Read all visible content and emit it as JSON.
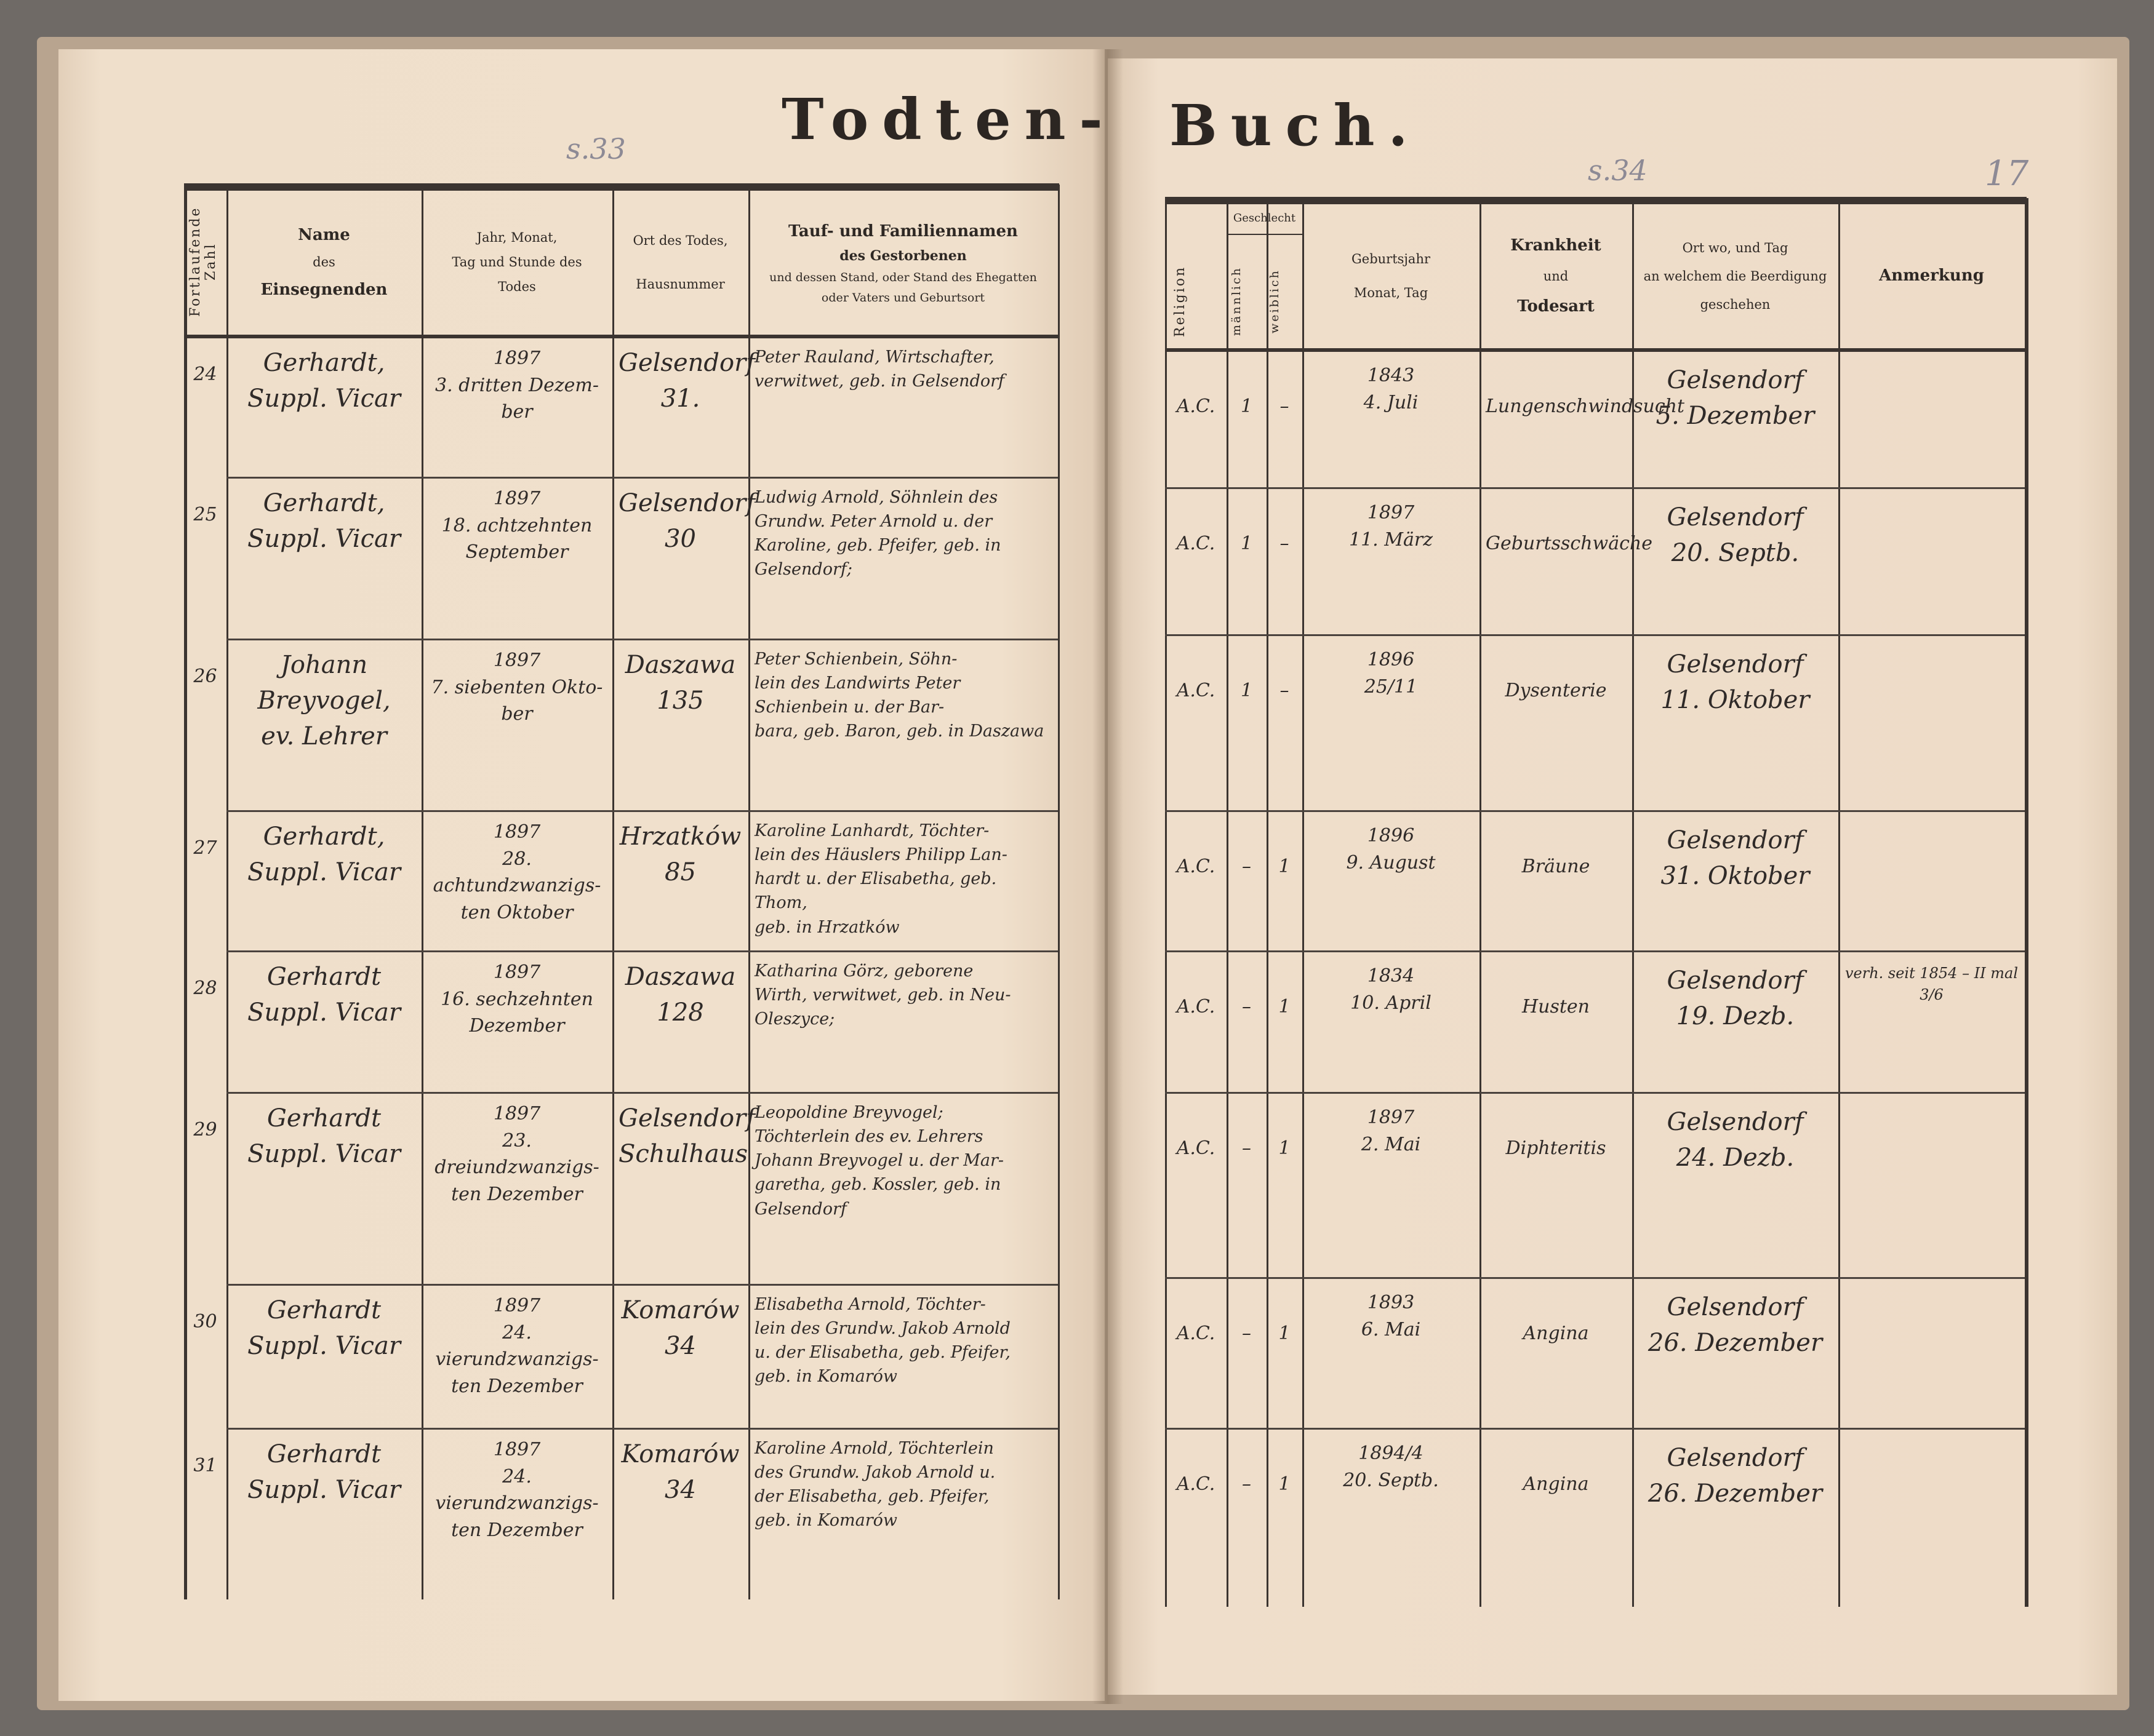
{
  "title_left": "Todten-",
  "title_right": "Buch.",
  "page_marks": {
    "left": "s.33",
    "right": "s.34",
    "folio": "17"
  },
  "left_headers": {
    "number": "Fortlaufende Zahl",
    "officiant": [
      "Name",
      "des",
      "Einsegnenden"
    ],
    "date": [
      "Jahr, Monat,",
      "Tag und Stunde des",
      "Todes"
    ],
    "place": [
      "Ort des Todes,",
      "Hausnummer"
    ],
    "deceased": [
      "Tauf- und Familiennamen",
      "des Gestorbenen",
      "und dessen Stand, oder Stand des Ehegatten",
      "oder Vaters und Geburtsort"
    ]
  },
  "right_headers": {
    "religion": "Religion",
    "sex": "Geschlecht",
    "male": "männlich",
    "female": "weiblich",
    "birth": [
      "Geburtsjahr",
      "Monat, Tag"
    ],
    "disease": [
      "Krankheit",
      "und",
      "Todesart"
    ],
    "burial": [
      "Ort wo, und Tag",
      "an welchem die Beerdigung",
      "geschehen"
    ],
    "remark": "Anmerkung"
  },
  "entries": [
    {
      "no": "24",
      "officiant": "Gerhardt,\nSuppl. Vicar",
      "date": "1897\n3. dritten Dezem-\nber",
      "place": "Gelsendorf\n31.",
      "deceased": "Peter Rauland, Wirtschafter,\nverwitwet, geb. in Gelsendorf",
      "religion": "A.C.",
      "male": "1",
      "female": "–",
      "birth": "1843\n4. Juli",
      "disease": "Lungenschwindsucht",
      "burial": "Gelsendorf\n5. Dezember",
      "remark": ""
    },
    {
      "no": "25",
      "officiant": "Gerhardt,\nSuppl. Vicar",
      "date": "1897\n18. achtzehnten\nSeptember",
      "place": "Gelsendorf\n30",
      "deceased": "Ludwig Arnold, Söhnlein des\nGrundw. Peter Arnold u. der\nKaroline, geb. Pfeifer, geb. in\nGelsendorf;",
      "religion": "A.C.",
      "male": "1",
      "female": "–",
      "birth": "1897\n11. März",
      "disease": "Geburtsschwäche",
      "burial": "Gelsendorf\n20. Septb.",
      "remark": ""
    },
    {
      "no": "26",
      "officiant": "Johann Breyvogel,\nev. Lehrer",
      "date": "1897\n7. siebenten Okto-\nber",
      "place": "Daszawa\n135",
      "deceased": "Peter Schienbein, Söhn-\nlein des Landwirts Peter\nSchienbein u. der Bar-\nbara, geb. Baron, geb. in Daszawa",
      "religion": "A.C.",
      "male": "1",
      "female": "–",
      "birth": "1896\n25/11",
      "disease": "Dysenterie",
      "burial": "Gelsendorf\n11. Oktober",
      "remark": ""
    },
    {
      "no": "27",
      "officiant": "Gerhardt,\nSuppl. Vicar",
      "date": "1897\n28. achtundzwanzigs-\nten Oktober",
      "place": "Hrzatków\n85",
      "deceased": "Karoline Lanhardt, Töchter-\nlein des Häuslers Philipp Lan-\nhardt u. der Elisabetha, geb. Thom,\ngeb. in Hrzatków",
      "religion": "A.C.",
      "male": "–",
      "female": "1",
      "birth": "1896\n9. August",
      "disease": "Bräune",
      "burial": "Gelsendorf\n31. Oktober",
      "remark": ""
    },
    {
      "no": "28",
      "officiant": "Gerhardt\nSuppl. Vicar",
      "date": "1897\n16. sechzehnten\nDezember",
      "place": "Daszawa\n128",
      "deceased": "Katharina Görz, geborene\nWirth, verwitwet, geb. in Neu-\nOleszyce;",
      "religion": "A.C.",
      "male": "–",
      "female": "1",
      "birth": "1834\n10. April",
      "disease": "Husten",
      "burial": "Gelsendorf\n19. Dezb.",
      "remark": "verh. seit 1854 – II mal   3/6"
    },
    {
      "no": "29",
      "officiant": "Gerhardt\nSuppl. Vicar",
      "date": "1897\n23. dreiundzwanzigs-\nten Dezember",
      "place": "Gelsendorf\nSchulhaus",
      "deceased": "Leopoldine Breyvogel;\nTöchterlein des ev. Lehrers\nJohann Breyvogel u. der Mar-\ngaretha, geb. Kossler, geb. in\nGelsendorf",
      "religion": "A.C.",
      "male": "–",
      "female": "1",
      "birth": "1897\n2. Mai",
      "disease": "Diphteritis",
      "burial": "Gelsendorf\n24. Dezb.",
      "remark": ""
    },
    {
      "no": "30",
      "officiant": "Gerhardt\nSuppl. Vicar",
      "date": "1897\n24. vierundzwanzigs-\nten Dezember",
      "place": "Komarów\n34",
      "deceased": "Elisabetha Arnold, Töchter-\nlein des Grundw. Jakob Arnold\nu. der Elisabetha, geb. Pfeifer,\ngeb. in Komarów",
      "religion": "A.C.",
      "male": "–",
      "female": "1",
      "birth": "1893\n6. Mai",
      "disease": "Angina",
      "burial": "Gelsendorf\n26. Dezember",
      "remark": ""
    },
    {
      "no": "31",
      "officiant": "Gerhardt\nSuppl. Vicar",
      "date": "1897\n24. vierundzwanzigs-\nten Dezember",
      "place": "Komarów\n34",
      "deceased": "Karoline Arnold, Töchterlein\ndes Grundw. Jakob Arnold u.\nder Elisabetha, geb. Pfeifer,\ngeb. in Komarów",
      "religion": "A.C.",
      "male": "–",
      "female": "1",
      "birth": "1894/4\n20. Septb.",
      "disease": "Angina",
      "burial": "Gelsendorf\n26. Dezember",
      "remark": ""
    }
  ],
  "colors": {
    "paper": "#eddcc7",
    "ink": "#2f2a28",
    "rule": "#3b3430",
    "cover": "#b8a48f"
  }
}
